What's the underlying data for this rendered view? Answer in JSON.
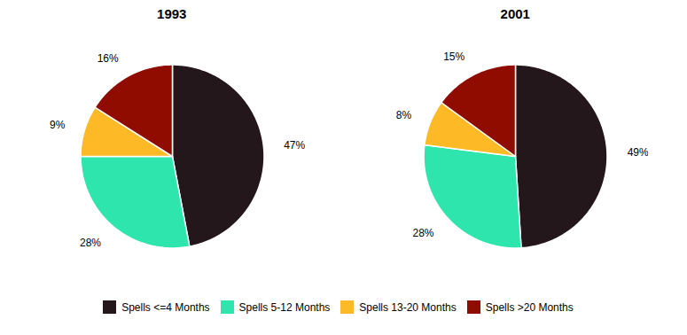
{
  "chart_data": [
    {
      "type": "pie",
      "title": "1993",
      "categories": [
        "Spells <=4 Months",
        "Spells 5-12 Months",
        "Spells 13-20 Months",
        "Spells >20 Months"
      ],
      "values": [
        47,
        28,
        9,
        16
      ],
      "value_labels": [
        "47%",
        "28%",
        "9%",
        "16%"
      ],
      "data_labels": true,
      "legend": "bottom"
    },
    {
      "type": "pie",
      "title": "2001",
      "categories": [
        "Spells <=4 Months",
        "Spells 5-12 Months",
        "Spells 13-20 Months",
        "Spells >20 Months"
      ],
      "values": [
        49,
        28,
        8,
        15
      ],
      "value_labels": [
        "49%",
        "28%",
        "8%",
        "15%"
      ],
      "data_labels": true,
      "legend": "bottom"
    }
  ]
}
